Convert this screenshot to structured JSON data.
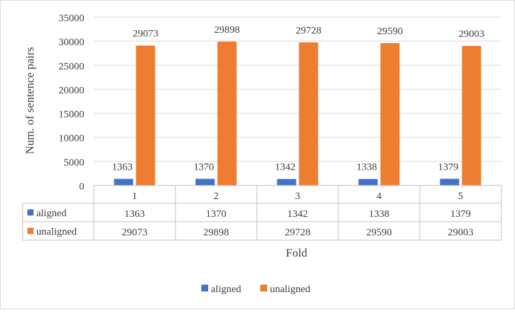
{
  "chart_data": {
    "type": "bar",
    "categories": [
      "1",
      "2",
      "3",
      "4",
      "5"
    ],
    "series": [
      {
        "name": "aligned",
        "color": "#4472C4",
        "values": [
          1363,
          1370,
          1342,
          1338,
          1379
        ]
      },
      {
        "name": "unaligned",
        "color": "#ED7D31",
        "values": [
          29073,
          29898,
          29728,
          29590,
          29003
        ]
      }
    ],
    "title": "",
    "xlabel": "Fold",
    "ylabel": "Num. of sentence pairs",
    "ylim": [
      0,
      35000
    ],
    "yticks": [
      "0",
      "5000",
      "10000",
      "15000",
      "20000",
      "25000",
      "30000",
      "35000"
    ],
    "grid": true,
    "data_table": true,
    "legend_position": "bottom"
  }
}
